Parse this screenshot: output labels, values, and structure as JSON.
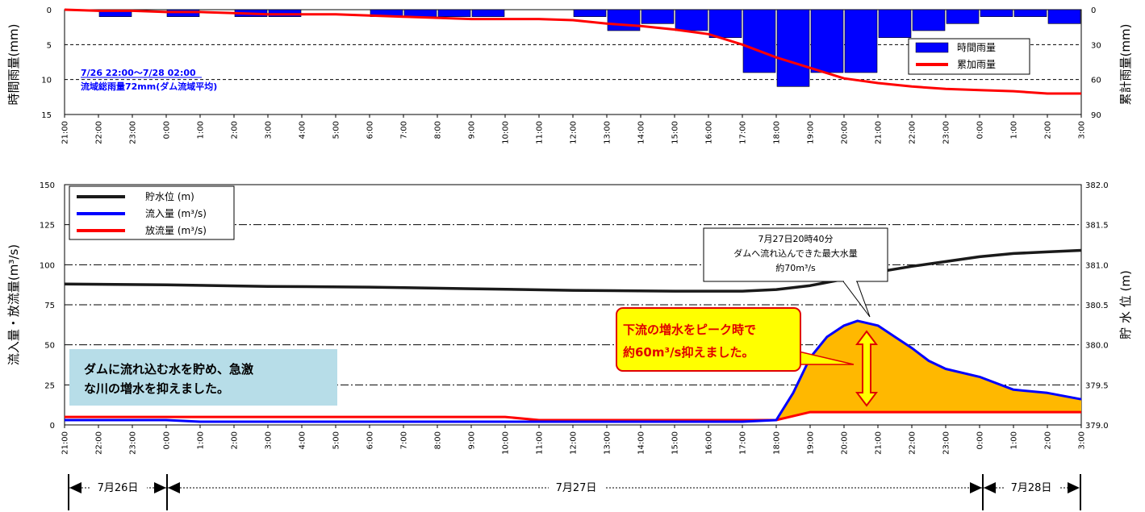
{
  "chart_data": [
    {
      "type": "bar",
      "x_ticks": [
        "21:00",
        "22:00",
        "23:00",
        "0:00",
        "1:00",
        "2:00",
        "3:00",
        "4:00",
        "5:00",
        "6:00",
        "7:00",
        "8:00",
        "9:00",
        "10:00",
        "11:00",
        "12:00",
        "13:00",
        "14:00",
        "15:00",
        "16:00",
        "17:00",
        "18:00",
        "19:00",
        "20:00",
        "21:00",
        "22:00",
        "23:00",
        "0:00",
        "1:00",
        "2:00",
        "3:00"
      ],
      "ylabel": "時間雨量(mm)",
      "y2label": "累計雨量(mm)",
      "ylim": [
        15,
        0
      ],
      "y2lim": [
        0,
        90
      ],
      "y_ticks": [
        "0",
        "5",
        "10",
        "15"
      ],
      "y2_ticks": [
        "0",
        "30",
        "60",
        "90"
      ],
      "legend_position": "upper-right",
      "series": [
        {
          "name": "時間雨量",
          "color": "#0000FF",
          "values": [
            0,
            1,
            0,
            1,
            0,
            1,
            1,
            0,
            0,
            1,
            1,
            1,
            1,
            0,
            0,
            1,
            3,
            2,
            3,
            4,
            9,
            11,
            9,
            9,
            4,
            3,
            2,
            1,
            1,
            2
          ]
        },
        {
          "name": "累加雨量",
          "color": "#FF0000",
          "points": [
            [
              0,
              0
            ],
            [
              1,
              1
            ],
            [
              2,
              1
            ],
            [
              3,
              2
            ],
            [
              4,
              2
            ],
            [
              5,
              3
            ],
            [
              6,
              4
            ],
            [
              7,
              4
            ],
            [
              8,
              4
            ],
            [
              9,
              5
            ],
            [
              10,
              6
            ],
            [
              11,
              7
            ],
            [
              12,
              8
            ],
            [
              13,
              8
            ],
            [
              14,
              8
            ],
            [
              15,
              9
            ],
            [
              16,
              12
            ],
            [
              17,
              14
            ],
            [
              18,
              17
            ],
            [
              19,
              21
            ],
            [
              20,
              30
            ],
            [
              21,
              41
            ],
            [
              22,
              50
            ],
            [
              23,
              59
            ],
            [
              24,
              63
            ],
            [
              25,
              66
            ],
            [
              26,
              68
            ],
            [
              27,
              69
            ],
            [
              28,
              70
            ],
            [
              29,
              72
            ],
            [
              30,
              72
            ]
          ]
        }
      ],
      "annotation_lines": [
        "7/26 22:00～7/28 02:00",
        "流域総雨量72mm(ダム流域平均)"
      ]
    },
    {
      "type": "line",
      "x_ticks": [
        "21:00",
        "22:00",
        "23:00",
        "0:00",
        "1:00",
        "2:00",
        "3:00",
        "4:00",
        "5:00",
        "6:00",
        "7:00",
        "8:00",
        "9:00",
        "10:00",
        "11:00",
        "12:00",
        "13:00",
        "14:00",
        "15:00",
        "16:00",
        "17:00",
        "18:00",
        "19:00",
        "20:00",
        "21:00",
        "22:00",
        "23:00",
        "0:00",
        "1:00",
        "2:00",
        "3:00"
      ],
      "ylabel": "流入量・放流量(m³/s)",
      "y2label": "貯 水 位 (m)",
      "ylim": [
        0,
        150
      ],
      "y2lim": [
        379.0,
        382.0
      ],
      "y_ticks": [
        "0",
        "25",
        "50",
        "75",
        "100",
        "125",
        "150"
      ],
      "y2_ticks": [
        "379.0",
        "379.5",
        "380.0",
        "380.5",
        "381.0",
        "381.5",
        "382.0"
      ],
      "legend_position": "upper-left",
      "series": [
        {
          "name": "貯水位 (m)",
          "color": "#1A1A1A",
          "points": [
            [
              0,
              380.76
            ],
            [
              3,
              380.75
            ],
            [
              6,
              380.73
            ],
            [
              9,
              380.72
            ],
            [
              12,
              380.7
            ],
            [
              15,
              380.68
            ],
            [
              18,
              380.67
            ],
            [
              20,
              380.67
            ],
            [
              21,
              380.69
            ],
            [
              22,
              380.74
            ],
            [
              23,
              380.82
            ],
            [
              24,
              380.91
            ],
            [
              25,
              380.98
            ],
            [
              26,
              381.04
            ],
            [
              27,
              381.1
            ],
            [
              28,
              381.14
            ],
            [
              29,
              381.16
            ],
            [
              30,
              381.18
            ]
          ]
        },
        {
          "name": "流入量 (m³/s)",
          "color": "#0000FF",
          "points": [
            [
              0,
              3
            ],
            [
              3,
              3
            ],
            [
              4,
              2
            ],
            [
              6,
              2
            ],
            [
              9,
              2
            ],
            [
              12,
              2
            ],
            [
              15,
              2
            ],
            [
              18,
              2
            ],
            [
              20,
              2
            ],
            [
              21,
              3
            ],
            [
              21.5,
              20
            ],
            [
              22,
              42
            ],
            [
              22.5,
              55
            ],
            [
              23,
              62
            ],
            [
              23.4,
              65
            ],
            [
              24,
              62
            ],
            [
              24.5,
              55
            ],
            [
              25,
              48
            ],
            [
              25.5,
              40
            ],
            [
              26,
              35
            ],
            [
              27,
              30
            ],
            [
              28,
              22
            ],
            [
              29,
              20
            ],
            [
              30,
              16
            ]
          ]
        },
        {
          "name": "放流量 (m³/s)",
          "color": "#FF0000",
          "points": [
            [
              0,
              5
            ],
            [
              13,
              5
            ],
            [
              14,
              3
            ],
            [
              21,
              3
            ],
            [
              22,
              8
            ],
            [
              30,
              8
            ]
          ]
        }
      ],
      "callout": {
        "lines": [
          "7月27日20時40分",
          "ダムへ流れ込んできた最大水量",
          "約70m³/s"
        ]
      },
      "highlight": {
        "lines": [
          "下流の増水をピーク時で",
          "約60m³/s抑えました。"
        ]
      },
      "note": {
        "lines": [
          "ダムに流れ込む水を貯め、急激",
          "な川の増水を抑えました。"
        ]
      },
      "day_labels": [
        "7月26日",
        "7月27日",
        "7月28日"
      ]
    }
  ],
  "colors": {
    "rain_bar": "#0000FF",
    "cumulative": "#FF0000",
    "water_level": "#1A1A1A",
    "inflow": "#0000FF",
    "outflow": "#FF0000",
    "fill": "#FFB800",
    "note_bg": "#B7DDE8",
    "highlight_bg": "#FFFF00",
    "highlight_text": "#E00000"
  }
}
